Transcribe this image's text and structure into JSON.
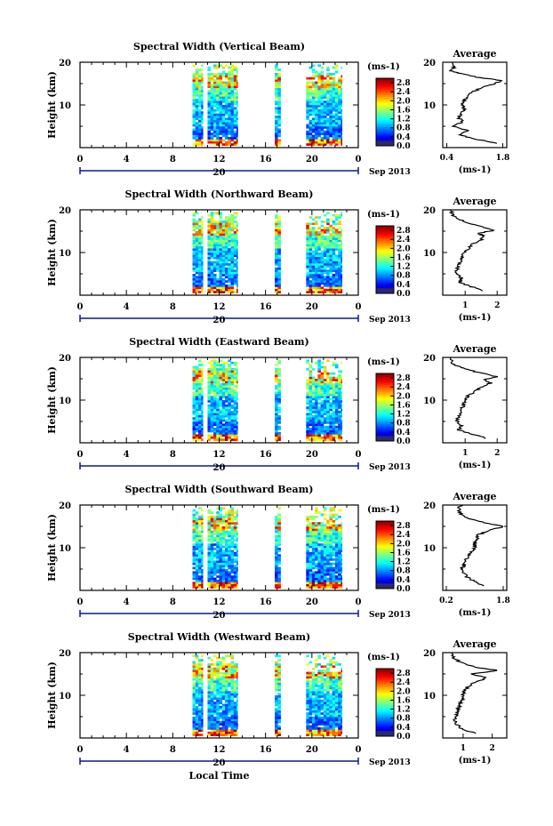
{
  "chart_data": [
    {
      "type": "heatmap",
      "title": "Spectral Width (Vertical Beam)",
      "ylabel": "Height (km)",
      "yticks": [
        "20",
        "10"
      ],
      "xticks": [
        "0",
        "4",
        "8",
        "12",
        "16",
        "20",
        "0"
      ],
      "date_day": "20",
      "date_month": "Sep 2013",
      "ylim": [
        0,
        20
      ],
      "xlim": [
        0,
        24
      ],
      "data_blocks": [
        [
          9.7,
          10.6
        ],
        [
          11.0,
          13.6
        ],
        [
          16.8,
          17.3
        ],
        [
          19.5,
          22.6
        ]
      ],
      "colorbar": {
        "unit": "(ms-1)",
        "ticks": [
          "2.8",
          "2.4",
          "2.0",
          "1.6",
          "1.2",
          "0.8",
          "0.4",
          "0.0"
        ],
        "range": [
          0,
          3.0
        ]
      },
      "average": {
        "title": "Average",
        "xlabel": "(ms-1)",
        "xticks": [
          "0.4",
          "1.8"
        ],
        "xlim": [
          0.3,
          1.9
        ],
        "profile": [
          [
            1.7,
            1
          ],
          [
            1.1,
            2
          ],
          [
            0.7,
            3
          ],
          [
            0.9,
            4
          ],
          [
            0.55,
            5
          ],
          [
            0.8,
            6
          ],
          [
            0.7,
            7
          ],
          [
            0.75,
            8
          ],
          [
            0.85,
            9
          ],
          [
            0.8,
            10
          ],
          [
            0.85,
            11
          ],
          [
            0.9,
            12
          ],
          [
            1.05,
            13
          ],
          [
            1.25,
            14
          ],
          [
            1.6,
            15
          ],
          [
            1.8,
            15.7
          ],
          [
            1.15,
            16.5
          ],
          [
            0.7,
            17.5
          ],
          [
            0.5,
            18
          ],
          [
            0.6,
            19
          ],
          [
            0.55,
            20
          ]
        ]
      }
    },
    {
      "type": "heatmap",
      "title": "Spectral Width (Northward Beam)",
      "ylabel": "Height (km)",
      "yticks": [
        "20",
        "10"
      ],
      "xticks": [
        "0",
        "4",
        "8",
        "12",
        "16",
        "20",
        "0"
      ],
      "date_day": "20",
      "date_month": "Sep 2013",
      "ylim": [
        0,
        20
      ],
      "xlim": [
        0,
        24
      ],
      "data_blocks": [
        [
          9.7,
          10.6
        ],
        [
          11.0,
          13.6
        ],
        [
          16.8,
          17.3
        ],
        [
          19.5,
          22.6
        ]
      ],
      "colorbar": {
        "unit": "(ms-1)",
        "ticks": [
          "2.8",
          "2.4",
          "2.0",
          "1.6",
          "1.2",
          "0.8",
          "0.4",
          "0.0"
        ],
        "range": [
          0,
          3.0
        ]
      },
      "average": {
        "title": "Average",
        "xlabel": "(ms-1)",
        "xticks": [
          "1",
          "2"
        ],
        "xlim": [
          0.3,
          2.3
        ],
        "profile": [
          [
            1.6,
            1
          ],
          [
            1.2,
            2
          ],
          [
            0.8,
            3
          ],
          [
            0.9,
            4
          ],
          [
            0.7,
            5
          ],
          [
            0.75,
            6
          ],
          [
            0.8,
            7
          ],
          [
            0.85,
            8
          ],
          [
            0.9,
            9
          ],
          [
            1.0,
            10
          ],
          [
            1.1,
            11
          ],
          [
            1.25,
            12
          ],
          [
            1.5,
            13
          ],
          [
            1.6,
            13.8
          ],
          [
            1.4,
            14.5
          ],
          [
            1.9,
            15.2
          ],
          [
            1.5,
            16
          ],
          [
            1.1,
            17
          ],
          [
            0.7,
            18
          ],
          [
            0.6,
            19
          ],
          [
            0.55,
            20
          ]
        ]
      }
    },
    {
      "type": "heatmap",
      "title": "Spectral Width (Eastward Beam)",
      "ylabel": "Height (km)",
      "yticks": [
        "20",
        "10"
      ],
      "xticks": [
        "0",
        "4",
        "8",
        "12",
        "16",
        "20",
        "0"
      ],
      "date_day": "20",
      "date_month": "Sep 2013",
      "ylim": [
        0,
        20
      ],
      "xlim": [
        0,
        24
      ],
      "data_blocks": [
        [
          9.7,
          10.6
        ],
        [
          11.0,
          13.6
        ],
        [
          16.8,
          17.3
        ],
        [
          19.5,
          22.6
        ]
      ],
      "colorbar": {
        "unit": "(ms-1)",
        "ticks": [
          "2.8",
          "2.4",
          "2.0",
          "1.6",
          "1.2",
          "0.8",
          "0.4",
          "0.0"
        ],
        "range": [
          0,
          3.0
        ]
      },
      "average": {
        "title": "Average",
        "xlabel": "(ms-1)",
        "xticks": [
          "1",
          "2"
        ],
        "xlim": [
          0.3,
          2.3
        ],
        "profile": [
          [
            1.7,
            1
          ],
          [
            1.2,
            2
          ],
          [
            0.8,
            3
          ],
          [
            0.9,
            4
          ],
          [
            0.75,
            5
          ],
          [
            0.8,
            6
          ],
          [
            0.85,
            7
          ],
          [
            0.9,
            8
          ],
          [
            0.95,
            9
          ],
          [
            1.0,
            10
          ],
          [
            1.1,
            11
          ],
          [
            1.3,
            12
          ],
          [
            1.5,
            13
          ],
          [
            1.8,
            14
          ],
          [
            1.6,
            14.8
          ],
          [
            2.0,
            15.5
          ],
          [
            1.4,
            16.5
          ],
          [
            0.9,
            17.5
          ],
          [
            0.6,
            18.5
          ],
          [
            0.55,
            20
          ]
        ]
      }
    },
    {
      "type": "heatmap",
      "title": "Spectral Width (Southward Beam)",
      "ylabel": "Height (km)",
      "yticks": [
        "20",
        "10"
      ],
      "xticks": [
        "0",
        "4",
        "8",
        "12",
        "16",
        "20",
        "0"
      ],
      "date_day": "20",
      "date_month": "Sep 2013",
      "ylim": [
        0,
        20
      ],
      "xlim": [
        0,
        24
      ],
      "data_blocks": [
        [
          9.7,
          10.6
        ],
        [
          11.0,
          13.6
        ],
        [
          16.8,
          17.3
        ],
        [
          19.5,
          22.6
        ]
      ],
      "colorbar": {
        "unit": "(ms-1)",
        "ticks": [
          "2.8",
          "2.4",
          "2.0",
          "1.6",
          "1.2",
          "0.8",
          "0.4",
          "0.0"
        ],
        "range": [
          0,
          3.0
        ]
      },
      "average": {
        "title": "Average",
        "xlabel": "(ms-1)",
        "xticks": [
          "0.2",
          "1.8"
        ],
        "xlim": [
          0.1,
          1.9
        ],
        "profile": [
          [
            1.3,
            1
          ],
          [
            1.0,
            2
          ],
          [
            0.8,
            3
          ],
          [
            0.7,
            4
          ],
          [
            0.65,
            5
          ],
          [
            0.7,
            6
          ],
          [
            0.75,
            7
          ],
          [
            0.8,
            8
          ],
          [
            0.9,
            9
          ],
          [
            1.0,
            10
          ],
          [
            1.0,
            11
          ],
          [
            1.05,
            12
          ],
          [
            1.1,
            13
          ],
          [
            1.4,
            14
          ],
          [
            1.8,
            15
          ],
          [
            1.2,
            16
          ],
          [
            0.8,
            17
          ],
          [
            0.6,
            18
          ],
          [
            0.55,
            19
          ],
          [
            0.6,
            20
          ]
        ]
      }
    },
    {
      "type": "heatmap",
      "title": "Spectral Width (Westward Beam)",
      "ylabel": "Height (km)",
      "yticks": [
        "20",
        "10"
      ],
      "xticks": [
        "0",
        "4",
        "8",
        "12",
        "16",
        "20",
        "0"
      ],
      "date_day": "20",
      "date_month": "Sep 2013",
      "xlabel": "Local Time",
      "ylim": [
        0,
        20
      ],
      "xlim": [
        0,
        24
      ],
      "data_blocks": [
        [
          9.7,
          10.6
        ],
        [
          11.0,
          13.6
        ],
        [
          16.8,
          17.3
        ],
        [
          19.5,
          22.6
        ]
      ],
      "colorbar": {
        "unit": "(ms-1)",
        "ticks": [
          "2.8",
          "2.4",
          "2.0",
          "1.6",
          "1.2",
          "0.8",
          "0.4",
          "0.0"
        ],
        "range": [
          0,
          3.0
        ]
      },
      "average": {
        "title": "Average",
        "xlabel": "(ms-1)",
        "xticks": [
          "1",
          "2"
        ],
        "xlim": [
          0.3,
          2.5
        ],
        "profile": [
          [
            1.5,
            1
          ],
          [
            1.0,
            2
          ],
          [
            0.8,
            3
          ],
          [
            0.7,
            4
          ],
          [
            0.75,
            5
          ],
          [
            0.8,
            6
          ],
          [
            0.85,
            7
          ],
          [
            0.9,
            8
          ],
          [
            1.0,
            9
          ],
          [
            1.0,
            10
          ],
          [
            1.05,
            11
          ],
          [
            1.15,
            12
          ],
          [
            1.4,
            13
          ],
          [
            1.8,
            14
          ],
          [
            1.3,
            15
          ],
          [
            2.2,
            15.8
          ],
          [
            1.5,
            16.5
          ],
          [
            1.0,
            17.5
          ],
          [
            0.7,
            18.5
          ],
          [
            0.6,
            20
          ]
        ]
      }
    }
  ]
}
